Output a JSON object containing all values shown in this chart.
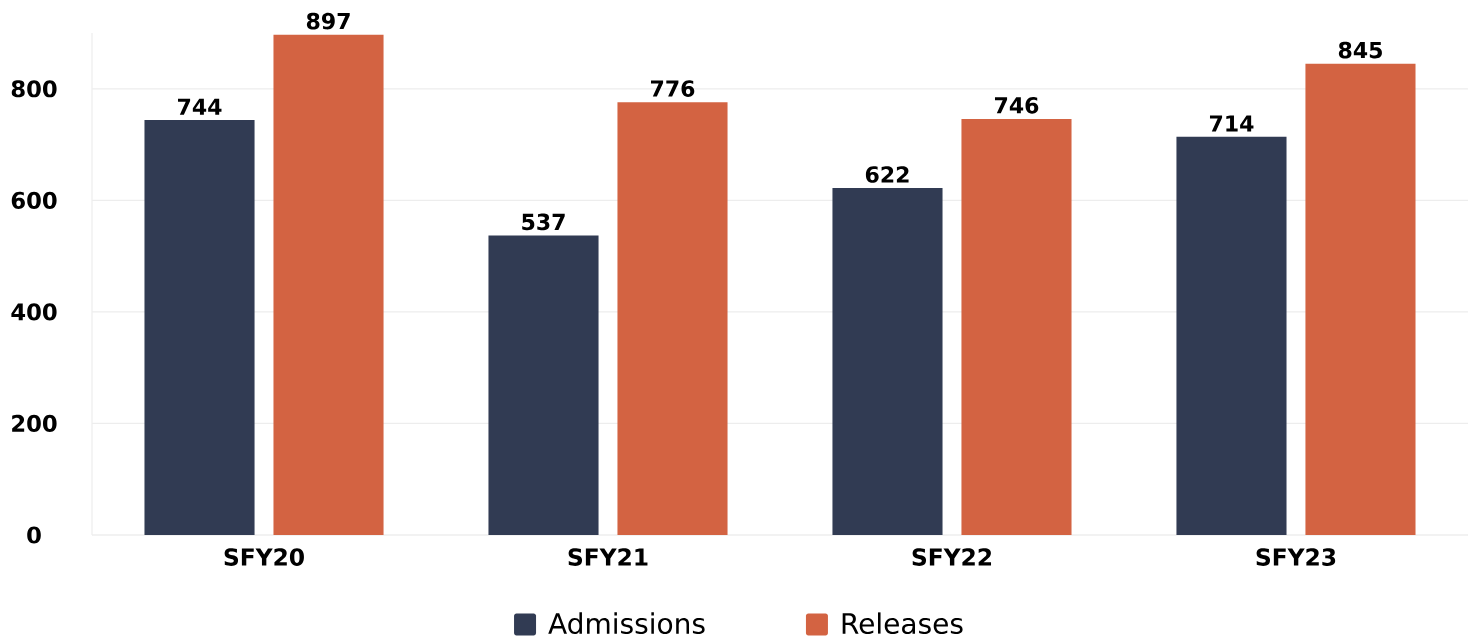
{
  "chart_data": {
    "type": "bar",
    "categories": [
      "SFY20",
      "SFY21",
      "SFY22",
      "SFY23"
    ],
    "series": [
      {
        "name": "Admissions",
        "color": "#313b53",
        "values": [
          744,
          537,
          622,
          714
        ]
      },
      {
        "name": "Releases",
        "color": "#d36342",
        "values": [
          897,
          776,
          746,
          845
        ]
      }
    ],
    "ylim": [
      0,
      900
    ],
    "yticks": [
      0,
      200,
      400,
      600,
      800
    ],
    "grid": "y",
    "legend": "bottom",
    "data_labels": true
  }
}
